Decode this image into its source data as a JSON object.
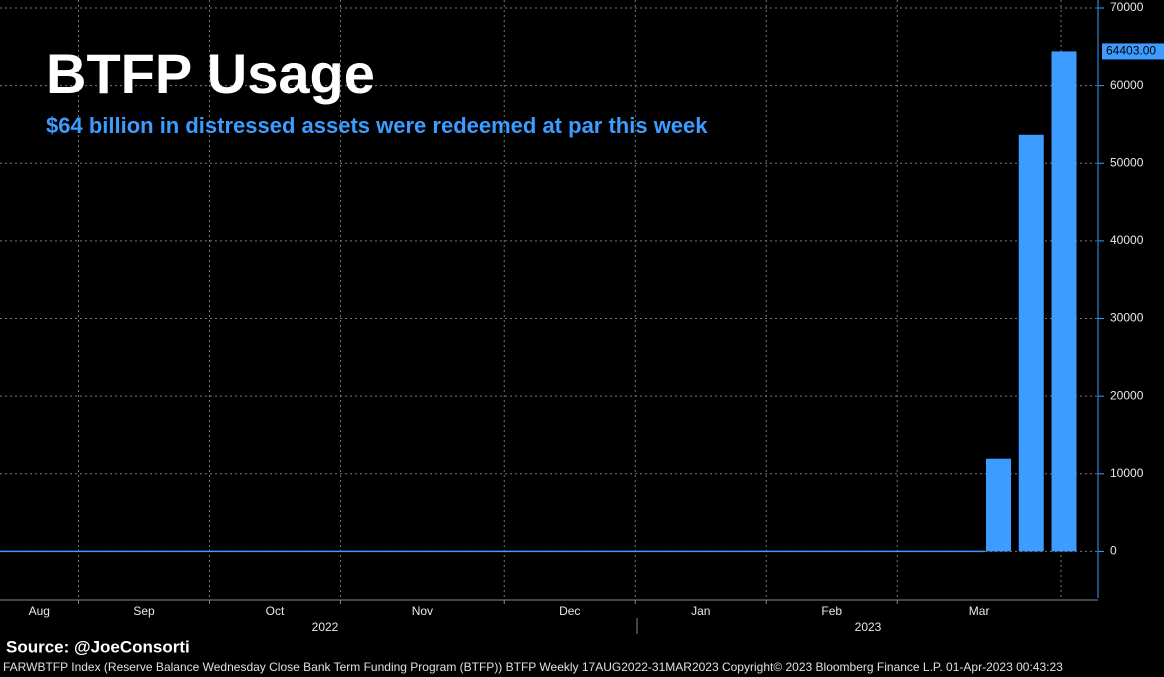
{
  "chart_data": {
    "type": "bar",
    "title": "BTFP Usage",
    "subtitle": "$64 billion in distressed assets were redeemed at par this week",
    "source": "Source:  @JoeConsorti",
    "footer": "FARWBTFP Index (Reserve Balance Wednesday Close Bank Term Funding Program (BTFP)) BTFP  Weekly 17AUG2022-31MAR2023  Copyright© 2023 Bloomberg Finance L.P.   01-Apr-2023 00:43:23",
    "categories": [
      null,
      null,
      null,
      null,
      null,
      null,
      null,
      null,
      null,
      null,
      null,
      null,
      null,
      null,
      null,
      null,
      null,
      null,
      null,
      null,
      null,
      null,
      null,
      null,
      null,
      null,
      null,
      null,
      null,
      null,
      null,
      null,
      null
    ],
    "values": [
      0,
      0,
      0,
      0,
      0,
      0,
      0,
      0,
      0,
      0,
      0,
      0,
      0,
      0,
      0,
      0,
      0,
      0,
      0,
      0,
      0,
      0,
      0,
      0,
      0,
      0,
      0,
      0,
      0,
      0,
      11943,
      53669,
      64403
    ],
    "last_value_label": "64403.00",
    "color": "#3d9cff",
    "months": [
      "Aug",
      "Sep",
      "Oct",
      "Nov",
      "Dec",
      "Jan",
      "Feb",
      "Mar"
    ],
    "years": [
      "2022",
      "2023"
    ],
    "ylim": [
      -6000,
      70000
    ],
    "yticks": [
      0,
      10000,
      20000,
      30000,
      40000,
      50000,
      60000,
      70000
    ],
    "grid": true
  }
}
